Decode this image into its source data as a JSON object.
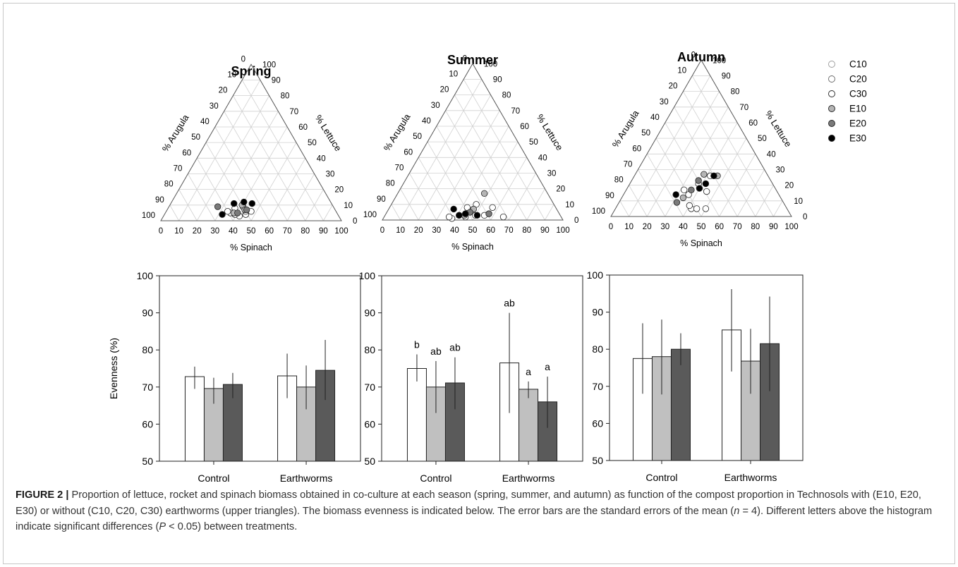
{
  "legend": {
    "items": [
      {
        "label": "C10",
        "color": "#ffffff"
      },
      {
        "label": "C20",
        "color": "#ffffff"
      },
      {
        "label": "C30",
        "color": "#ffffff"
      },
      {
        "label": "E10",
        "color": "#b5b5b5"
      },
      {
        "label": "E20",
        "color": "#7a7a7a"
      },
      {
        "label": "E30",
        "color": "#000000"
      }
    ]
  },
  "ternary_axes": {
    "left_label": "% Arugula",
    "right_label": "% Lettuce",
    "bottom_label": "% Spinach",
    "ticks": [
      "0",
      "10",
      "20",
      "30",
      "40",
      "50",
      "60",
      "70",
      "80",
      "90",
      "100"
    ]
  },
  "bar_axes": {
    "ylabel": "Evenness (%)",
    "yticks": [
      "50",
      "60",
      "70",
      "80",
      "90",
      "100"
    ],
    "groups": [
      "Control",
      "Earthworms"
    ]
  },
  "chart_data": [
    {
      "type": "scatter",
      "title": "Spring",
      "coordinates": "ternary",
      "components": [
        "% Spinach",
        "% Lettuce",
        "% Arugula"
      ],
      "points": [
        {
          "series": "C10",
          "spinach": 45,
          "lettuce": 4
        },
        {
          "series": "C10",
          "spinach": 42,
          "lettuce": 3
        },
        {
          "series": "C10",
          "spinach": 47,
          "lettuce": 6
        },
        {
          "series": "C20",
          "spinach": 36,
          "lettuce": 5
        },
        {
          "series": "C20",
          "spinach": 44,
          "lettuce": 6
        },
        {
          "series": "C20",
          "spinach": 39,
          "lettuce": 4
        },
        {
          "series": "C30",
          "spinach": 37,
          "lettuce": 8
        },
        {
          "series": "C30",
          "spinach": 41,
          "lettuce": 9
        },
        {
          "series": "C30",
          "spinach": 34,
          "lettuce": 6
        },
        {
          "series": "E10",
          "spinach": 40,
          "lettuce": 10
        },
        {
          "series": "E10",
          "spinach": 43,
          "lettuce": 7
        },
        {
          "series": "E10",
          "spinach": 38,
          "lettuce": 5
        },
        {
          "series": "E20",
          "spinach": 27,
          "lettuce": 9
        },
        {
          "series": "E20",
          "spinach": 40,
          "lettuce": 5
        },
        {
          "series": "E20",
          "spinach": 44,
          "lettuce": 7
        },
        {
          "series": "E30",
          "spinach": 35,
          "lettuce": 11
        },
        {
          "series": "E30",
          "spinach": 40,
          "lettuce": 12
        },
        {
          "series": "E30",
          "spinach": 45,
          "lettuce": 11
        },
        {
          "series": "E30",
          "spinach": 32,
          "lettuce": 4
        }
      ]
    },
    {
      "type": "scatter",
      "title": "Summer",
      "coordinates": "ternary",
      "components": [
        "% Spinach",
        "% Lettuce",
        "% Arugula"
      ],
      "points": [
        {
          "series": "C10",
          "spinach": 45,
          "lettuce": 2
        },
        {
          "series": "C10",
          "spinach": 55,
          "lettuce": 3
        },
        {
          "series": "C10",
          "spinach": 38,
          "lettuce": 1
        },
        {
          "series": "C20",
          "spinach": 47,
          "lettuce": 10
        },
        {
          "series": "C20",
          "spinach": 43,
          "lettuce": 8
        },
        {
          "series": "C20",
          "spinach": 36,
          "lettuce": 2
        },
        {
          "series": "C30",
          "spinach": 57,
          "lettuce": 8
        },
        {
          "series": "C30",
          "spinach": 66,
          "lettuce": 2
        },
        {
          "series": "C30",
          "spinach": 50,
          "lettuce": 3
        },
        {
          "series": "E10",
          "spinach": 48,
          "lettuce": 17
        },
        {
          "series": "E10",
          "spinach": 47,
          "lettuce": 7
        },
        {
          "series": "E10",
          "spinach": 44,
          "lettuce": 3
        },
        {
          "series": "E20",
          "spinach": 57,
          "lettuce": 4
        },
        {
          "series": "E20",
          "spinach": 46,
          "lettuce": 5
        },
        {
          "series": "E20",
          "spinach": 41,
          "lettuce": 3
        },
        {
          "series": "E30",
          "spinach": 36,
          "lettuce": 7
        },
        {
          "series": "E30",
          "spinach": 41,
          "lettuce": 3
        },
        {
          "series": "E30",
          "spinach": 51,
          "lettuce": 3
        },
        {
          "series": "E30",
          "spinach": 44,
          "lettuce": 4
        }
      ]
    },
    {
      "type": "scatter",
      "title": "Autumn",
      "coordinates": "ternary",
      "components": [
        "% Spinach",
        "% Lettuce",
        "% Arugula"
      ],
      "points": [
        {
          "series": "C10",
          "spinach": 50,
          "lettuce": 5
        },
        {
          "series": "C10",
          "spinach": 42,
          "lettuce": 5
        },
        {
          "series": "C10",
          "spinach": 45,
          "lettuce": 5
        },
        {
          "series": "C20",
          "spinach": 32,
          "lettuce": 17
        },
        {
          "series": "C20",
          "spinach": 36,
          "lettuce": 14
        },
        {
          "series": "C20",
          "spinach": 40,
          "lettuce": 7
        },
        {
          "series": "C30",
          "spinach": 42,
          "lettuce": 26
        },
        {
          "series": "C30",
          "spinach": 45,
          "lettuce": 16
        },
        {
          "series": "C30",
          "spinach": 38,
          "lettuce": 21
        },
        {
          "series": "E10",
          "spinach": 38,
          "lettuce": 27
        },
        {
          "series": "E10",
          "spinach": 46,
          "lettuce": 26
        },
        {
          "series": "E10",
          "spinach": 34,
          "lettuce": 12
        },
        {
          "series": "E20",
          "spinach": 37,
          "lettuce": 23
        },
        {
          "series": "E20",
          "spinach": 32,
          "lettuce": 9
        },
        {
          "series": "E20",
          "spinach": 36,
          "lettuce": 17
        },
        {
          "series": "E30",
          "spinach": 44,
          "lettuce": 26
        },
        {
          "series": "E30",
          "spinach": 42,
          "lettuce": 21
        },
        {
          "series": "E30",
          "spinach": 40,
          "lettuce": 18
        },
        {
          "series": "E30",
          "spinach": 29,
          "lettuce": 14
        }
      ]
    },
    {
      "type": "bar",
      "categories": [
        "Control",
        "Earthworms"
      ],
      "ylabel": "Evenness (%)",
      "ylim": [
        50,
        100
      ],
      "series": [
        {
          "name": "C",
          "color": "#ffffff",
          "values": [
            72.8,
            73.0
          ],
          "err_low": [
            69.5,
            67.0
          ],
          "err_high": [
            75.5,
            79.0
          ],
          "letters": [
            "",
            ""
          ]
        },
        {
          "name": "",
          "color": "#c0c0c0",
          "values": [
            69.6,
            70.0
          ],
          "err_low": [
            65.5,
            64.0
          ],
          "err_high": [
            72.5,
            75.8
          ],
          "letters": [
            "",
            ""
          ]
        },
        {
          "name": "",
          "color": "#5a5a5a",
          "values": [
            70.7,
            74.5
          ],
          "err_low": [
            67.0,
            66.5
          ],
          "err_high": [
            73.8,
            82.7
          ],
          "letters": [
            "",
            ""
          ]
        }
      ]
    },
    {
      "type": "bar",
      "categories": [
        "Control",
        "Earthworms"
      ],
      "ylim": [
        50,
        100
      ],
      "series": [
        {
          "name": "",
          "color": "#ffffff",
          "values": [
            75.0,
            76.5
          ],
          "err_low": [
            71.5,
            63.0
          ],
          "err_high": [
            78.8,
            90.0
          ],
          "letters": [
            "b",
            "ab"
          ]
        },
        {
          "name": "",
          "color": "#c0c0c0",
          "values": [
            70.0,
            69.4
          ],
          "err_low": [
            63.0,
            67.0
          ],
          "err_high": [
            77.0,
            71.5
          ],
          "letters": [
            "ab",
            "a"
          ]
        },
        {
          "name": "",
          "color": "#5a5a5a",
          "values": [
            71.1,
            66.0
          ],
          "err_low": [
            64.0,
            59.0
          ],
          "err_high": [
            78.0,
            72.8
          ],
          "letters": [
            "ab",
            "a"
          ]
        }
      ]
    },
    {
      "type": "bar",
      "categories": [
        "Control",
        "Earthworms"
      ],
      "ylim": [
        50,
        100
      ],
      "series": [
        {
          "name": "",
          "color": "#ffffff",
          "values": [
            77.5,
            85.2
          ],
          "err_low": [
            68.0,
            74.0
          ],
          "err_high": [
            87.0,
            96.2
          ],
          "letters": [
            "",
            ""
          ]
        },
        {
          "name": "",
          "color": "#c0c0c0",
          "values": [
            78.0,
            76.8
          ],
          "err_low": [
            67.8,
            68.0
          ],
          "err_high": [
            88.0,
            85.5
          ],
          "letters": [
            "",
            ""
          ]
        },
        {
          "name": "",
          "color": "#5a5a5a",
          "values": [
            80.0,
            81.5
          ],
          "err_low": [
            75.7,
            68.7
          ],
          "err_high": [
            84.3,
            94.2
          ],
          "letters": [
            "",
            ""
          ]
        }
      ]
    }
  ],
  "caption": {
    "label": "FIGURE 2 |",
    "text_a": " Proportion of lettuce, rocket and spinach biomass obtained in co-culture at each season (spring, summer, and autumn) as function of the compost proportion in Technosols with (E10, E20, E30) or without (C10, C20, C30) earthworms (upper triangles). The biomass evenness is indicated below. The error bars are the standard errors of the mean (",
    "n_symbol": "n",
    "text_b": " = 4). Different letters above the histogram indicate significant differences (",
    "p_symbol": "P",
    "text_c": " < 0.05) between treatments."
  }
}
